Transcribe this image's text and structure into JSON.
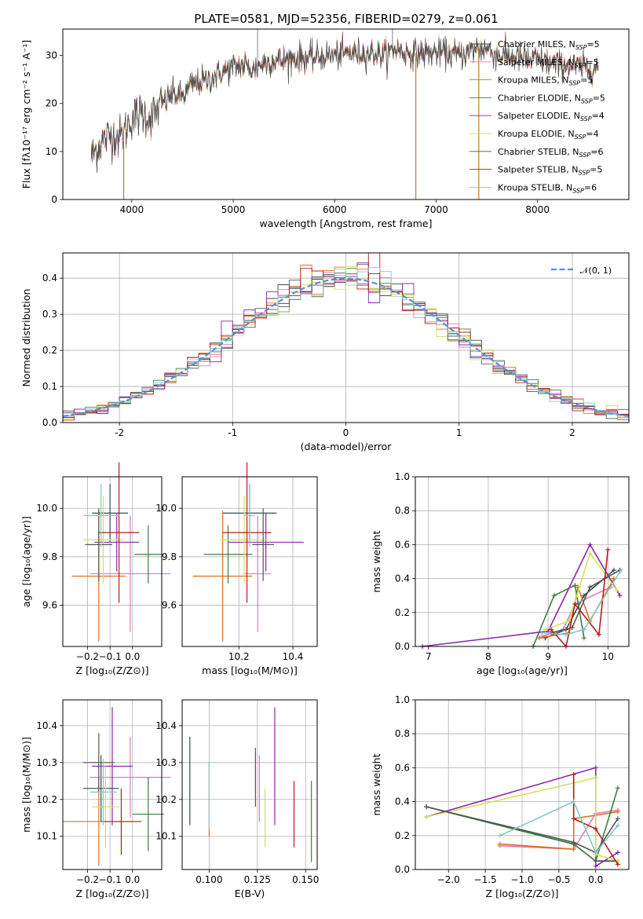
{
  "title": "PLATE=0581, MJD=52356, FIBERID=0279, z=0.061",
  "colors": [
    "#2f4f4f",
    "#e377c2",
    "#e07020",
    "#3e7e3e",
    "#8e24aa",
    "#d4e157",
    "#555555",
    "#b71c1c",
    "#80cbc4"
  ],
  "chart_data": [
    {
      "id": "spectrum",
      "type": "line",
      "xlabel": "wavelength [Angstrom, rest frame]",
      "ylabel": "Flux [fλ10⁻¹⁷ erg cm⁻² s⁻¹ A⁻¹]",
      "xlim": [
        3320,
        8900
      ],
      "ylim": [
        0,
        35.5
      ],
      "xticks": [
        4000,
        5000,
        6000,
        7000,
        8000
      ],
      "yticks": [
        0,
        10,
        20,
        30
      ],
      "x_range": [
        3600,
        8600
      ],
      "continuum": [
        [
          3600,
          9
        ],
        [
          3700,
          12
        ],
        [
          3800,
          13.5
        ],
        [
          3900,
          13
        ],
        [
          4000,
          17
        ],
        [
          4100,
          18
        ],
        [
          4200,
          17
        ],
        [
          4300,
          20
        ],
        [
          4400,
          22
        ],
        [
          4500,
          21.5
        ],
        [
          4600,
          24
        ],
        [
          4700,
          24.5
        ],
        [
          4800,
          25.5
        ],
        [
          4900,
          26.5
        ],
        [
          5000,
          27.5
        ],
        [
          5100,
          28
        ],
        [
          5200,
          27
        ],
        [
          5300,
          28.5
        ],
        [
          5400,
          29
        ],
        [
          5500,
          29
        ],
        [
          5600,
          29.5
        ],
        [
          5700,
          29.5
        ],
        [
          5800,
          29.5
        ],
        [
          5900,
          30
        ],
        [
          6000,
          30
        ],
        [
          6100,
          30.5
        ],
        [
          6200,
          30.5
        ],
        [
          6300,
          30.5
        ],
        [
          6400,
          30.5
        ],
        [
          6500,
          30
        ],
        [
          6600,
          31.5
        ],
        [
          6700,
          30.5
        ],
        [
          6800,
          30.5
        ],
        [
          6900,
          30.5
        ],
        [
          7000,
          30.5
        ],
        [
          7100,
          30.5
        ],
        [
          7200,
          30
        ],
        [
          7300,
          30.5
        ],
        [
          7400,
          31.5
        ],
        [
          7500,
          31.5
        ],
        [
          7600,
          30
        ],
        [
          7700,
          30
        ],
        [
          7800,
          29.5
        ],
        [
          7900,
          29
        ],
        [
          8000,
          29
        ],
        [
          8100,
          28.5
        ],
        [
          8200,
          28
        ],
        [
          8300,
          28
        ],
        [
          8400,
          27.5
        ],
        [
          8500,
          27.5
        ],
        [
          8600,
          27.5
        ]
      ],
      "legend": [
        {
          "label": "Chabrier MILES, N",
          "sub": "SSP",
          "suffix": "=5"
        },
        {
          "label": "Salpeter MILES, N",
          "sub": "SSP",
          "suffix": "=5"
        },
        {
          "label": "Kroupa MILES, N",
          "sub": "SSP",
          "suffix": "=5"
        },
        {
          "label": "Chabrier ELODIE, N",
          "sub": "SSP",
          "suffix": "=5"
        },
        {
          "label": "Salpeter ELODIE, N",
          "sub": "SSP",
          "suffix": "=4"
        },
        {
          "label": "Kroupa ELODIE, N",
          "sub": "SSP",
          "suffix": "=4"
        },
        {
          "label": "Chabrier STELIB, N",
          "sub": "SSP",
          "suffix": "=6"
        },
        {
          "label": "Salpeter STELIB, N",
          "sub": "SSP",
          "suffix": "=5"
        },
        {
          "label": "Kroupa STELIB, N",
          "sub": "SSP",
          "suffix": "=6"
        }
      ]
    },
    {
      "id": "residuals",
      "type": "histogram",
      "xlabel": "(data-model)/error",
      "ylabel": "Normed distribution",
      "xlim": [
        -2.5,
        2.5
      ],
      "ylim": [
        0,
        0.47
      ],
      "xticks": [
        -2,
        -1,
        0,
        1,
        2
      ],
      "yticks": [
        0.0,
        0.1,
        0.2,
        0.3,
        0.4
      ],
      "bin_width": 0.1,
      "legend": "𝒩(0, 1)",
      "legend_placement": "top-right"
    },
    {
      "id": "z-age",
      "type": "scatter",
      "xlabel": "Z [log₁₀(Z/Z⊙)]",
      "ylabel": "age  [log₁₀(age/yr)]",
      "xlim": [
        -0.31,
        0.13
      ],
      "ylim": [
        9.43,
        10.13
      ],
      "xticks": [
        -0.2,
        -0.1,
        0.0
      ],
      "yticks": [
        9.6,
        9.8,
        10.0
      ],
      "points": [
        {
          "x": -0.1,
          "y": 9.98,
          "xerr": 0.08,
          "yerr": 0.12
        },
        {
          "x": -0.01,
          "y": 9.73,
          "xerr": 0.18,
          "yerr": 0.24
        },
        {
          "x": -0.15,
          "y": 9.72,
          "xerr": 0.12,
          "yerr": 0.27
        },
        {
          "x": 0.07,
          "y": 9.81,
          "xerr": 0.06,
          "yerr": 0.12
        },
        {
          "x": -0.07,
          "y": 9.86,
          "xerr": 0.1,
          "yerr": 0.12
        },
        {
          "x": -0.13,
          "y": 9.87,
          "xerr": 0.09,
          "yerr": 0.18
        },
        {
          "x": -0.15,
          "y": 9.85,
          "xerr": 0.06,
          "yerr": 0.15
        },
        {
          "x": -0.06,
          "y": 9.9,
          "xerr": 0.09,
          "yerr": 0.29
        },
        {
          "x": -0.14,
          "y": 9.97,
          "xerr": 0.08,
          "yerr": 0.13
        }
      ]
    },
    {
      "id": "mass-age",
      "type": "scatter",
      "xlabel": "mass [log₁₀(M/M⊙)]",
      "ylabel": "",
      "xlim": [
        9.99,
        10.49
      ],
      "ylim": [
        9.43,
        10.13
      ],
      "xticks": [
        10.2,
        10.4
      ],
      "yticks": [
        9.6,
        9.8,
        10.0
      ],
      "points": [
        {
          "x": 10.24,
          "y": 9.98,
          "xerr": 0.1,
          "yerr": 0.12
        },
        {
          "x": 10.27,
          "y": 9.73,
          "xerr": 0.05,
          "yerr": 0.24
        },
        {
          "x": 10.14,
          "y": 9.72,
          "xerr": 0.11,
          "yerr": 0.27
        },
        {
          "x": 10.16,
          "y": 9.81,
          "xerr": 0.09,
          "yerr": 0.12
        },
        {
          "x": 10.3,
          "y": 9.86,
          "xerr": 0.14,
          "yerr": 0.12
        },
        {
          "x": 10.22,
          "y": 9.87,
          "xerr": 0.09,
          "yerr": 0.18
        },
        {
          "x": 10.29,
          "y": 9.85,
          "xerr": 0.04,
          "yerr": 0.15
        },
        {
          "x": 10.23,
          "y": 9.9,
          "xerr": 0.09,
          "yerr": 0.29
        },
        {
          "x": 10.24,
          "y": 9.97,
          "xerr": 0.02,
          "yerr": 0.13
        }
      ]
    },
    {
      "id": "age-weight",
      "type": "line",
      "xlabel": "age  [log₁₀(age/yr)]",
      "ylabel": "mass weight",
      "xlim": [
        6.78,
        10.35
      ],
      "ylim": [
        0,
        1.0
      ],
      "xticks": [
        7,
        8,
        9,
        10
      ],
      "yticks": [
        0.0,
        0.2,
        0.4,
        0.6,
        0.8,
        1.0
      ],
      "series": [
        [
          [
            8.95,
            0.05
          ],
          [
            9.3,
            0.1
          ],
          [
            9.6,
            0.3
          ],
          [
            10.1,
            0.45
          ]
        ],
        [
          [
            8.9,
            0.06
          ],
          [
            9.25,
            0.1
          ],
          [
            9.45,
            0.25
          ],
          [
            10.05,
            0.35
          ]
        ],
        [
          [
            8.85,
            0.05
          ],
          [
            9.35,
            0.08
          ],
          [
            9.5,
            0.35
          ],
          [
            9.7,
            0.15
          ],
          [
            10.1,
            0.4
          ]
        ],
        [
          [
            8.75,
            0.0
          ],
          [
            9.1,
            0.3
          ],
          [
            9.45,
            0.36
          ],
          [
            9.6,
            0.05
          ]
        ],
        [
          [
            6.9,
            0.0
          ],
          [
            9.0,
            0.09
          ],
          [
            9.7,
            0.6
          ],
          [
            10.2,
            0.3
          ]
        ],
        [
          [
            8.95,
            0.1
          ],
          [
            9.35,
            0.15
          ],
          [
            9.7,
            0.55
          ],
          [
            10.15,
            0.33
          ]
        ],
        [
          [
            9.05,
            0.08
          ],
          [
            9.4,
            0.11
          ],
          [
            9.7,
            0.35
          ],
          [
            10.2,
            0.45
          ]
        ],
        [
          [
            9.05,
            0.1
          ],
          [
            9.3,
            0.0
          ],
          [
            9.45,
            0.25
          ],
          [
            9.85,
            0.07
          ],
          [
            10.0,
            0.57
          ]
        ],
        [
          [
            8.9,
            0.08
          ],
          [
            9.3,
            0.07
          ],
          [
            9.6,
            0.1
          ],
          [
            10.2,
            0.44
          ]
        ]
      ]
    },
    {
      "id": "z-mass",
      "type": "scatter",
      "xlabel": "Z [log₁₀(Z/Z⊙)]",
      "ylabel": "mass [log₁₀(M/M⊙)]",
      "xlim": [
        -0.31,
        0.13
      ],
      "ylim": [
        10.01,
        10.47
      ],
      "xticks": [
        -0.2,
        -0.1,
        0.0
      ],
      "yticks": [
        10.1,
        10.2,
        10.3,
        10.4
      ],
      "points": [
        {
          "x": -0.14,
          "y": 10.23,
          "xerr": 0.08,
          "yerr": 0.09
        },
        {
          "x": -0.01,
          "y": 10.26,
          "xerr": 0.18,
          "yerr": 0.11
        },
        {
          "x": -0.15,
          "y": 10.14,
          "xerr": 0.16,
          "yerr": 0.12
        },
        {
          "x": 0.07,
          "y": 10.16,
          "xerr": 0.07,
          "yerr": 0.1
        },
        {
          "x": -0.09,
          "y": 10.29,
          "xerr": 0.09,
          "yerr": 0.16
        },
        {
          "x": -0.12,
          "y": 10.18,
          "xerr": 0.06,
          "yerr": 0.11
        },
        {
          "x": -0.15,
          "y": 10.3,
          "xerr": 0.07,
          "yerr": 0.08
        },
        {
          "x": -0.05,
          "y": 10.14,
          "xerr": 0.09,
          "yerr": 0.09
        },
        {
          "x": -0.13,
          "y": 10.22,
          "xerr": 0.06,
          "yerr": 0.09
        }
      ]
    },
    {
      "id": "ebv-mass",
      "type": "scatter",
      "xlabel": "E(B-V)",
      "ylabel": "",
      "xlim": [
        0.086,
        0.156
      ],
      "ylim": [
        10.01,
        10.47
      ],
      "xticks": [
        0.1,
        0.125,
        0.15
      ],
      "yticks": [
        10.1,
        10.2,
        10.3,
        10.4
      ],
      "points": [
        {
          "x": 0.09,
          "y": 10.25,
          "yerr": 0.12
        },
        {
          "x": 0.126,
          "y": 10.23,
          "yerr": 0.09
        },
        {
          "x": 0.1,
          "y": 10.2,
          "yerr": 0.1
        },
        {
          "x": 0.153,
          "y": 10.14,
          "yerr": 0.11
        },
        {
          "x": 0.134,
          "y": 10.29,
          "yerr": 0.16
        },
        {
          "x": 0.129,
          "y": 10.15,
          "yerr": 0.08
        },
        {
          "x": 0.124,
          "y": 10.26,
          "yerr": 0.08
        },
        {
          "x": 0.144,
          "y": 10.16,
          "yerr": 0.09
        },
        {
          "x": 0.1,
          "y": 10.21,
          "yerr": 0.09
        }
      ]
    },
    {
      "id": "z-weight",
      "type": "line",
      "xlabel": "Z [log₁₀(Z/Z⊙)]",
      "ylabel": "mass weight",
      "xlim": [
        -2.45,
        0.45
      ],
      "ylim": [
        0,
        1.0
      ],
      "xticks": [
        -2.0,
        -1.5,
        -1.0,
        -0.5,
        0.0
      ],
      "yticks": [
        0.0,
        0.2,
        0.4,
        0.6,
        0.8,
        1.0
      ],
      "series": [
        [
          [
            -2.3,
            0.37
          ],
          [
            -0.3,
            0.15
          ],
          [
            0.0,
            0.05
          ],
          [
            0.3,
            0.05
          ]
        ],
        [
          [
            -1.3,
            0.14
          ],
          [
            -0.3,
            0.12
          ],
          [
            0.0,
            0.33
          ],
          [
            0.3,
            0.35
          ]
        ],
        [
          [
            -1.3,
            0.15
          ],
          [
            -0.3,
            0.12
          ],
          [
            -0.3,
            0.3
          ],
          [
            0.3,
            0.34
          ]
        ],
        [
          [
            -2.3,
            0.37
          ],
          [
            -0.3,
            0.15
          ],
          [
            0.0,
            0.05
          ],
          [
            0.3,
            0.48
          ]
        ],
        [
          [
            -2.3,
            0.31
          ],
          [
            0.0,
            0.6
          ],
          [
            0.0,
            0.02
          ],
          [
            0.3,
            0.1
          ]
        ],
        [
          [
            -2.3,
            0.31
          ],
          [
            0.0,
            0.54
          ],
          [
            0.0,
            0.09
          ],
          [
            0.3,
            0.05
          ]
        ],
        [
          [
            -2.3,
            0.37
          ],
          [
            -0.3,
            0.16
          ],
          [
            0.0,
            0.1
          ],
          [
            0.3,
            0.3
          ]
        ],
        [
          [
            -0.3,
            0.56
          ],
          [
            -0.3,
            0.3
          ],
          [
            0.0,
            0.24
          ],
          [
            0.3,
            0.03
          ]
        ],
        [
          [
            -1.3,
            0.2
          ],
          [
            -0.3,
            0.4
          ],
          [
            0.0,
            0.1
          ],
          [
            0.3,
            0.26
          ]
        ]
      ]
    }
  ]
}
